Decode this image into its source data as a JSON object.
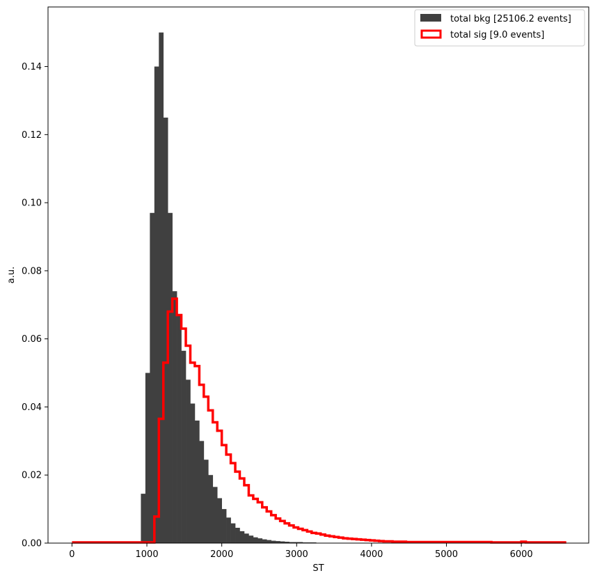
{
  "chart_data": {
    "type": "histogram",
    "title": "",
    "xlabel": "ST",
    "ylabel": "a.u.",
    "xlim": [
      -320,
      6900
    ],
    "ylim": [
      0,
      0.1575
    ],
    "x_ticks": [
      0,
      1000,
      2000,
      3000,
      4000,
      5000,
      6000
    ],
    "x_tick_labels": [
      "0",
      "1000",
      "2000",
      "3000",
      "4000",
      "5000",
      "6000"
    ],
    "y_ticks": [
      0,
      0.02,
      0.04,
      0.06,
      0.08,
      0.1,
      0.12,
      0.14
    ],
    "y_tick_labels": [
      "0.00",
      "0.02",
      "0.04",
      "0.06",
      "0.08",
      "0.10",
      "0.12",
      "0.14"
    ],
    "grid": false,
    "legend_position": "top-right",
    "series": [
      {
        "name": "total bkg [25106.2 events]",
        "style": "filled",
        "color": "#404040",
        "bin_edges": [
          920,
          980,
          1040,
          1100,
          1160,
          1220,
          1280,
          1340,
          1400,
          1460,
          1520,
          1580,
          1640,
          1700,
          1760,
          1820,
          1880,
          1940,
          2000,
          2060,
          2120,
          2180,
          2240,
          2300,
          2360,
          2420,
          2480,
          2540,
          2600,
          2660,
          2720,
          2780,
          2840,
          2900,
          2960,
          3020,
          3080,
          3140,
          3200,
          3260,
          3320,
          3380,
          3440,
          3500,
          3560,
          3620,
          3680,
          3740,
          3800,
          3860,
          3920,
          3980
        ],
        "values": [
          0.0145,
          0.05,
          0.097,
          0.14,
          0.15,
          0.125,
          0.097,
          0.074,
          0.067,
          0.0565,
          0.048,
          0.041,
          0.036,
          0.03,
          0.0245,
          0.02,
          0.0165,
          0.0132,
          0.01,
          0.0075,
          0.0058,
          0.0045,
          0.0035,
          0.0028,
          0.0022,
          0.0017,
          0.0014,
          0.0011,
          0.0009,
          0.0007,
          0.0006,
          0.0005,
          0.0004,
          0.0003,
          0.0003,
          0.0003,
          0.0002,
          0.0002,
          0.0002,
          0.0001,
          0.0001,
          0.0001,
          0.0001,
          0.0001,
          0.0001,
          0.0001,
          0.0001,
          0.0001,
          0.0001,
          0.0001,
          0.0001
        ]
      },
      {
        "name": "total sig [9.0 events]",
        "style": "step",
        "color": "#ff0000",
        "x": [
          0,
          1100,
          1160,
          1220,
          1280,
          1340,
          1400,
          1460,
          1520,
          1580,
          1640,
          1700,
          1760,
          1820,
          1880,
          1940,
          2000,
          2060,
          2120,
          2180,
          2240,
          2300,
          2360,
          2420,
          2480,
          2540,
          2600,
          2660,
          2720,
          2780,
          2840,
          2900,
          2960,
          3020,
          3080,
          3140,
          3200,
          3260,
          3320,
          3380,
          3440,
          3500,
          3560,
          3620,
          3680,
          3740,
          3800,
          3860,
          3920,
          3980,
          4040,
          4100,
          4160,
          4220,
          4280,
          4340,
          4400,
          4460,
          4520,
          4580,
          4640,
          5600,
          6000,
          6060,
          6600
        ],
        "values": [
          0.0002,
          0.0078,
          0.0365,
          0.053,
          0.068,
          0.0718,
          0.067,
          0.063,
          0.058,
          0.053,
          0.052,
          0.0465,
          0.043,
          0.039,
          0.0355,
          0.033,
          0.0288,
          0.026,
          0.0235,
          0.021,
          0.019,
          0.017,
          0.014,
          0.013,
          0.012,
          0.0105,
          0.0093,
          0.0082,
          0.0072,
          0.0065,
          0.0058,
          0.0052,
          0.0046,
          0.0042,
          0.0038,
          0.0034,
          0.003,
          0.0028,
          0.0025,
          0.0022,
          0.002,
          0.0018,
          0.0016,
          0.0014,
          0.0013,
          0.0012,
          0.0011,
          0.001,
          0.0009,
          0.0008,
          0.0007,
          0.0006,
          0.0005,
          0.0005,
          0.0004,
          0.0004,
          0.0004,
          0.0003,
          0.0003,
          0.0003,
          0.0003,
          0.0002,
          0.0004,
          0.0002
        ]
      }
    ]
  },
  "legend": {
    "items": [
      {
        "label": "total bkg [25106.2 events]",
        "swatch": "filled",
        "color": "#404040"
      },
      {
        "label": "total sig [9.0 events]",
        "swatch": "outline",
        "color": "#ff0000"
      }
    ]
  }
}
